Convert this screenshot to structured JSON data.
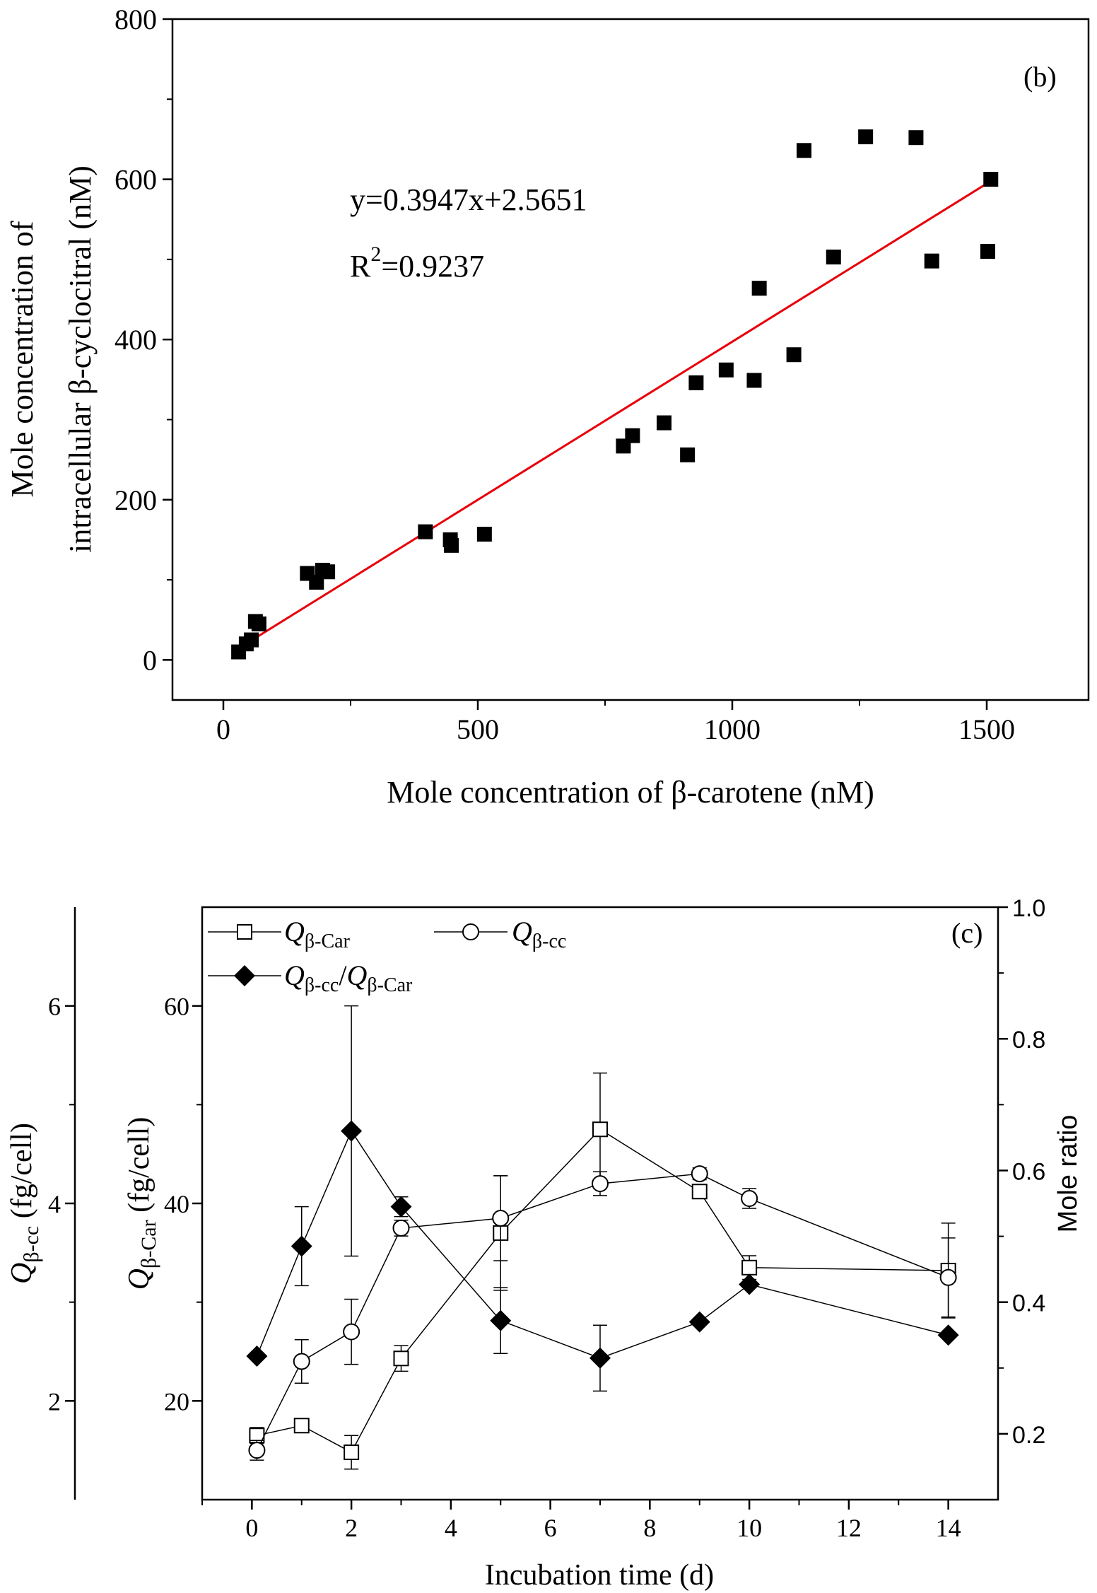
{
  "chart_data": [
    {
      "type": "scatter",
      "panel_label": "(b)",
      "xlabel": "Mole concentration of β-carotene (nM)",
      "ylabel_line1": "Mole concentration of",
      "ylabel_line2": "intracellular β-cyclocitral (nM)",
      "xlim": [
        -100,
        1700
      ],
      "ylim": [
        -50,
        800
      ],
      "xticks": [
        "0",
        "500",
        "1000",
        "1500"
      ],
      "yticks": [
        "0",
        "200",
        "400",
        "600",
        "800"
      ],
      "grid": false,
      "equation": "y=0.3947x+2.5651",
      "r2_prefix": "R",
      "r2_sup": "2",
      "r2_value": "=0.9237",
      "fit": {
        "slope": 0.3947,
        "intercept": 2.5651,
        "x_range": [
          30,
          1505
        ],
        "color": "#e8000b"
      },
      "points": [
        [
          30,
          10
        ],
        [
          45,
          20
        ],
        [
          55,
          25
        ],
        [
          63,
          48
        ],
        [
          70,
          45
        ],
        [
          165,
          108
        ],
        [
          183,
          97
        ],
        [
          195,
          112
        ],
        [
          205,
          110
        ],
        [
          397,
          160
        ],
        [
          446,
          150
        ],
        [
          448,
          143
        ],
        [
          513,
          157
        ],
        [
          786,
          267
        ],
        [
          804,
          280
        ],
        [
          866,
          296
        ],
        [
          912,
          256
        ],
        [
          929,
          346
        ],
        [
          988,
          362
        ],
        [
          1043,
          349
        ],
        [
          1053,
          464
        ],
        [
          1121,
          381
        ],
        [
          1141,
          636
        ],
        [
          1199,
          503
        ],
        [
          1262,
          653
        ],
        [
          1361,
          652
        ],
        [
          1392,
          498
        ],
        [
          1502,
          510
        ],
        [
          1508,
          600
        ]
      ]
    },
    {
      "type": "line",
      "panel_label": "(c)",
      "xlabel": "Incubation time (d)",
      "xlim": [
        -1,
        15
      ],
      "xticks": [
        "0",
        "2",
        "4",
        "6",
        "8",
        "10",
        "12",
        "14"
      ],
      "left_outer_axis": {
        "label_main": "Q",
        "label_sub": "β-cc",
        "label_unit": " (fg/cell)",
        "ylim": [
          1,
          7
        ],
        "ticks": [
          "2",
          "4",
          "6"
        ]
      },
      "left_inner_axis": {
        "label_main": "Q",
        "label_sub": "β-Car",
        "label_unit": " (fg/cell)",
        "ylim": [
          10,
          70
        ],
        "ticks": [
          "20",
          "40",
          "60"
        ]
      },
      "right_axis": {
        "label": "Mole ratio",
        "ylim": [
          0.1,
          1.0
        ],
        "ticks": [
          "0.2",
          "0.4",
          "0.6",
          "0.8",
          "1.0"
        ]
      },
      "grid": false,
      "legend": [
        {
          "main": "Q",
          "sub": "β-Car",
          "marker": "square-open"
        },
        {
          "main": "Q",
          "sub": "β-cc",
          "marker": "circle-open"
        },
        {
          "main": "Q",
          "sub": "β-cc",
          "sep": "/",
          "main2": "Q",
          "sub2": "β-Car",
          "marker": "diamond-filled"
        }
      ],
      "x": [
        0.1,
        1,
        2,
        3,
        5,
        7,
        9,
        10,
        14
      ],
      "series": [
        {
          "name": "Qβ-Car",
          "axis": "left_inner",
          "marker": "square-open",
          "values": [
            16.5,
            17.5,
            14.8,
            24.3,
            37.0,
            47.5,
            41.2,
            33.5,
            33.2
          ],
          "errors": [
            0.8,
            0.7,
            1.7,
            1.3,
            5.8,
            5.7,
            0.7,
            1.2,
            4.8
          ]
        },
        {
          "name": "Qβ-cc",
          "axis": "left_outer",
          "marker": "circle-open",
          "values": [
            1.5,
            2.4,
            2.7,
            3.75,
            3.85,
            4.2,
            4.3,
            4.05,
            3.25
          ],
          "errors": [
            0.1,
            0.22,
            0.33,
            0.08,
            0.43,
            0.12,
            0.06,
            0.1,
            0.4
          ]
        },
        {
          "name": "Qβ-cc/Qβ-Car",
          "axis": "right",
          "marker": "diamond-filled",
          "values": [
            0.318,
            0.485,
            0.66,
            0.545,
            0.372,
            0.315,
            0.37,
            0.427,
            0.35
          ],
          "errors": [
            0.0,
            0.06,
            0.19,
            0.015,
            0.05,
            0.05,
            0.0,
            0.0,
            0.0
          ]
        }
      ]
    }
  ]
}
